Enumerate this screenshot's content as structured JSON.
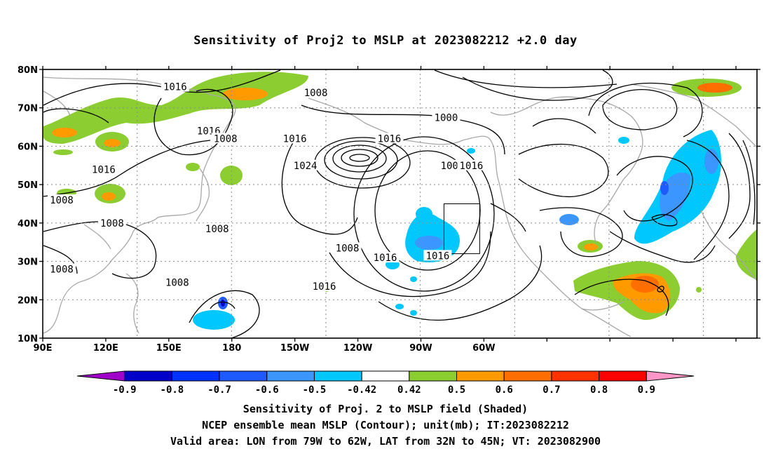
{
  "title": "Sensitivity of Proj2 to MSLP at 2023082212 +2.0 day",
  "axes": {
    "lat_labels": [
      "80N",
      "70N",
      "60N",
      "50N",
      "40N",
      "30N",
      "20N",
      "10N"
    ],
    "lon_labels": [
      "90E",
      "120E",
      "150E",
      "180",
      "150W",
      "120W",
      "90W",
      "60W"
    ]
  },
  "contour_labels": [
    {
      "text": "1016",
      "lon": 153,
      "lat": 75.5
    },
    {
      "text": "1008",
      "lon": -140,
      "lat": 74
    },
    {
      "text": "1000",
      "lon": -78,
      "lat": 67.5
    },
    {
      "text": "1016",
      "lon": 169,
      "lat": 64
    },
    {
      "text": "1008",
      "lon": 177,
      "lat": 62
    },
    {
      "text": "1016",
      "lon": -150,
      "lat": 62
    },
    {
      "text": "1016",
      "lon": -105,
      "lat": 62
    },
    {
      "text": "1016",
      "lon": 119,
      "lat": 54
    },
    {
      "text": "1024",
      "lon": -145,
      "lat": 55
    },
    {
      "text": "1008",
      "lon": -75,
      "lat": 55
    },
    {
      "text": "1016",
      "lon": -66,
      "lat": 55
    },
    {
      "text": "1008",
      "lon": 99,
      "lat": 46
    },
    {
      "text": "1008",
      "lon": 123,
      "lat": 40
    },
    {
      "text": "1008",
      "lon": 173,
      "lat": 38.5
    },
    {
      "text": "1008",
      "lon": -125,
      "lat": 33.5
    },
    {
      "text": "1016",
      "lon": -107,
      "lat": 31
    },
    {
      "text": "1016",
      "lon": -82,
      "lat": 31.5
    },
    {
      "text": "1008",
      "lon": 99,
      "lat": 28
    },
    {
      "text": "1008",
      "lon": 154,
      "lat": 24.5
    },
    {
      "text": "1016",
      "lon": -136,
      "lat": 23.5
    }
  ],
  "valid_box": {
    "lon_min": -79,
    "lon_max": -62,
    "lat_min": 32,
    "lat_max": 45
  },
  "colorbar": {
    "tick_labels": [
      "-0.9",
      "-0.8",
      "-0.7",
      "-0.6",
      "-0.5",
      "-0.42",
      "0.42",
      "0.5",
      "0.6",
      "0.7",
      "0.8",
      "0.9"
    ],
    "colors": [
      "#a000c8",
      "#0000c8",
      "#0032ff",
      "#1e5aff",
      "#3c96ff",
      "#00c8ff",
      "#ffffff",
      "#8ccd32",
      "#ff9b00",
      "#ff6e00",
      "#ff3200",
      "#ff0000",
      "#ff96c8"
    ]
  },
  "captions": [
    "Sensitivity of Proj. 2 to MSLP field (Shaded)",
    "NCEP ensemble mean MSLP (Contour); unit(mb); IT:2023082212",
    "Valid area: LON from 79W to 62W, LAT from 32N to 45N; VT: 2023082900"
  ]
}
